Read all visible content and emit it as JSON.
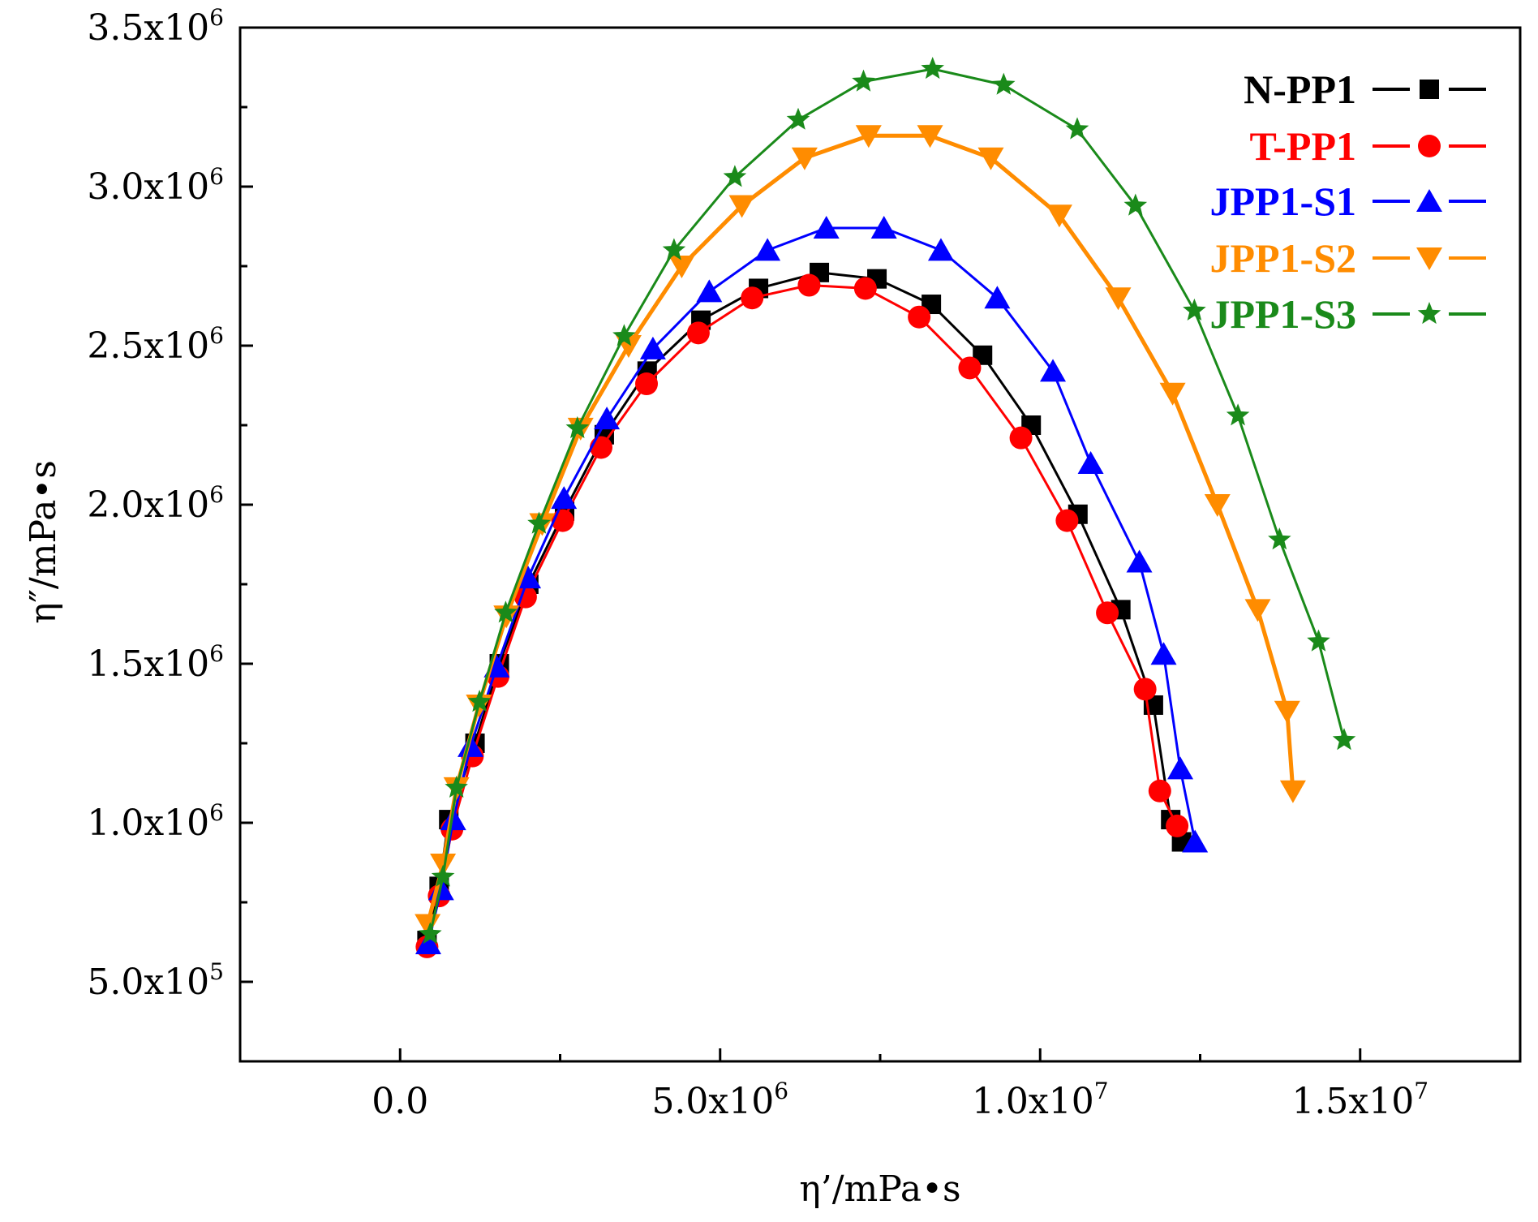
{
  "chart_data": {
    "type": "line",
    "title": "",
    "xlabel": "η’/mPa•s",
    "ylabel": "η″/mPa•s",
    "xlim": [
      -2500000,
      17500000
    ],
    "ylim": [
      250000,
      3500000
    ],
    "x_ticks": [
      {
        "value": 0,
        "label": "0.0",
        "mant": "0.0",
        "exp": ""
      },
      {
        "value": 5000000,
        "label": "5.0x10^6",
        "mant": "5.0x10",
        "exp": "6"
      },
      {
        "value": 10000000,
        "label": "1.0x10^7",
        "mant": "1.0x10",
        "exp": "7"
      },
      {
        "value": 15000000,
        "label": "1.5x10^7",
        "mant": "1.5x10",
        "exp": "7"
      }
    ],
    "y_ticks": [
      {
        "value": 500000,
        "label": "5.0x10^5",
        "mant": "5.0x10",
        "exp": "5"
      },
      {
        "value": 1000000,
        "label": "1.0x10^6",
        "mant": "1.0x10",
        "exp": "6"
      },
      {
        "value": 1500000,
        "label": "1.5x10^6",
        "mant": "1.5x10",
        "exp": "6"
      },
      {
        "value": 2000000,
        "label": "2.0x10^6",
        "mant": "2.0x10",
        "exp": "6"
      },
      {
        "value": 2500000,
        "label": "2.5x10^6",
        "mant": "2.5x10",
        "exp": "6"
      },
      {
        "value": 3000000,
        "label": "3.0x10^6",
        "mant": "3.0x10",
        "exp": "6"
      },
      {
        "value": 3500000,
        "label": "3.5x10^6",
        "mant": "3.5x10",
        "exp": "6"
      }
    ],
    "x_minor_ticks": [
      -2500000,
      2500000,
      7500000,
      12500000,
      17500000
    ],
    "y_minor_ticks": [
      250000,
      750000,
      1250000,
      1750000,
      2250000,
      2750000,
      3250000
    ],
    "legend_position": "top-right",
    "series": [
      {
        "name": "N-PP1",
        "color": "#000000",
        "marker": "square",
        "line_width": 3,
        "x": [
          420000,
          610000,
          760000,
          1170000,
          1550000,
          2010000,
          2570000,
          3190000,
          3860000,
          4700000,
          5600000,
          6550000,
          7450000,
          8300000,
          9100000,
          9860000,
          10590000,
          11260000,
          11770000,
          12040000,
          12210000
        ],
        "y": [
          630000,
          800000,
          1010000,
          1250000,
          1500000,
          1750000,
          1980000,
          2220000,
          2420000,
          2580000,
          2680000,
          2730000,
          2710000,
          2630000,
          2470000,
          2250000,
          1970000,
          1670000,
          1370000,
          1010000,
          940000
        ]
      },
      {
        "name": "T-PP1",
        "color": "#ff0000",
        "marker": "circle",
        "line_width": 3,
        "x": [
          420000,
          610000,
          810000,
          1130000,
          1530000,
          1960000,
          2540000,
          3140000,
          3850000,
          4660000,
          5500000,
          6390000,
          7270000,
          8110000,
          8900000,
          9700000,
          10420000,
          11050000,
          11640000,
          11870000,
          12140000
        ],
        "y": [
          610000,
          770000,
          980000,
          1210000,
          1460000,
          1710000,
          1950000,
          2180000,
          2380000,
          2540000,
          2650000,
          2690000,
          2680000,
          2590000,
          2430000,
          2210000,
          1950000,
          1660000,
          1420000,
          1100000,
          990000
        ]
      },
      {
        "name": "JPP1-S1",
        "color": "#0000ff",
        "marker": "triangle-up",
        "line_width": 3,
        "x": [
          440000,
          640000,
          830000,
          1100000,
          1510000,
          2000000,
          2560000,
          3230000,
          3950000,
          4830000,
          5740000,
          6660000,
          7560000,
          8450000,
          9330000,
          10200000,
          10790000,
          11550000,
          11930000,
          12190000,
          12420000
        ],
        "y": [
          620000,
          790000,
          1010000,
          1240000,
          1490000,
          1770000,
          2020000,
          2270000,
          2490000,
          2670000,
          2800000,
          2870000,
          2870000,
          2800000,
          2650000,
          2420000,
          2130000,
          1820000,
          1530000,
          1170000,
          940000
        ]
      },
      {
        "name": "JPP1-S2",
        "color": "#ff8c00",
        "marker": "triangle-down",
        "line_width": 5,
        "x": [
          430000,
          670000,
          880000,
          1230000,
          1660000,
          2220000,
          2820000,
          3570000,
          4400000,
          5340000,
          6320000,
          7320000,
          8280000,
          9230000,
          10300000,
          11220000,
          12070000,
          12770000,
          13400000,
          13860000,
          13950000
        ],
        "y": [
          680000,
          870000,
          1110000,
          1370000,
          1650000,
          1940000,
          2240000,
          2500000,
          2750000,
          2940000,
          3090000,
          3160000,
          3160000,
          3090000,
          2910000,
          2650000,
          2350000,
          2000000,
          1670000,
          1350000,
          1100000
        ]
      },
      {
        "name": "JPP1-S3",
        "color": "#1a8a1a",
        "marker": "star",
        "line_width": 3,
        "x": [
          470000,
          670000,
          880000,
          1240000,
          1650000,
          2170000,
          2770000,
          3500000,
          4280000,
          5230000,
          6220000,
          7240000,
          8320000,
          9430000,
          10580000,
          11490000,
          12410000,
          13090000,
          13740000,
          14350000,
          14750000
        ],
        "y": [
          650000,
          830000,
          1110000,
          1380000,
          1660000,
          1940000,
          2240000,
          2530000,
          2800000,
          3030000,
          3210000,
          3330000,
          3370000,
          3320000,
          3180000,
          2940000,
          2610000,
          2280000,
          1890000,
          1570000,
          1260000
        ]
      }
    ]
  }
}
